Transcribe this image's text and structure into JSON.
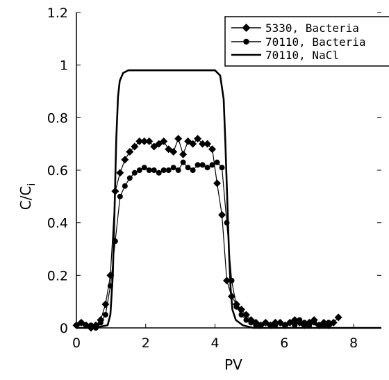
{
  "chart_data": {
    "type": "line",
    "title": "",
    "xlabel": "PV",
    "ylabel": "C/C",
    "ylabel_sub": "i",
    "xlim": [
      0,
      8.8
    ],
    "ylim": [
      0,
      1.2
    ],
    "x_ticks": [
      "0",
      "2",
      "4",
      "6",
      "8"
    ],
    "y_ticks": [
      "0",
      "0.2",
      "0.4",
      "0.6",
      "0.8",
      "1",
      "1.2"
    ],
    "grid": false,
    "legend": "top-right",
    "series": [
      {
        "name": "5330, Bacteria",
        "marker": "diamond",
        "x": [
          0.0,
          0.14,
          0.28,
          0.42,
          0.56,
          0.7,
          0.84,
          0.98,
          1.12,
          1.26,
          1.4,
          1.54,
          1.68,
          1.82,
          1.96,
          2.1,
          2.24,
          2.38,
          2.52,
          2.66,
          2.8,
          2.94,
          3.08,
          3.22,
          3.36,
          3.5,
          3.64,
          3.78,
          3.92,
          4.06,
          4.2,
          4.34,
          4.48,
          4.62,
          4.76,
          4.9,
          5.04,
          5.18,
          5.32,
          5.46,
          5.6,
          5.74,
          5.88,
          6.02,
          6.16,
          6.3,
          6.44,
          6.58,
          6.72,
          6.86,
          7.0,
          7.14,
          7.28,
          7.42,
          7.56
        ],
        "y": [
          0.01,
          0.02,
          0.01,
          0.0,
          0.01,
          0.03,
          0.09,
          0.2,
          0.52,
          0.59,
          0.64,
          0.67,
          0.69,
          0.71,
          0.71,
          0.71,
          0.69,
          0.7,
          0.71,
          0.68,
          0.67,
          0.72,
          0.66,
          0.71,
          0.7,
          0.72,
          0.7,
          0.7,
          0.68,
          0.55,
          0.43,
          0.18,
          0.12,
          0.09,
          0.07,
          0.05,
          0.03,
          0.02,
          0.01,
          0.02,
          0.01,
          0.02,
          0.02,
          0.01,
          0.02,
          0.03,
          0.02,
          0.01,
          0.02,
          0.03,
          0.01,
          0.02,
          0.01,
          0.02,
          0.04
        ]
      },
      {
        "name": "70110, Bacteria",
        "marker": "circle",
        "x": [
          0.0,
          0.14,
          0.28,
          0.42,
          0.56,
          0.7,
          0.84,
          0.98,
          1.12,
          1.26,
          1.4,
          1.54,
          1.68,
          1.82,
          1.96,
          2.1,
          2.24,
          2.38,
          2.52,
          2.66,
          2.8,
          2.94,
          3.08,
          3.22,
          3.36,
          3.5,
          3.64,
          3.78,
          3.92,
          4.06,
          4.2,
          4.34,
          4.48,
          4.62,
          4.76,
          4.9,
          5.04,
          5.18,
          5.32,
          5.46,
          5.6,
          5.74,
          5.88,
          6.02,
          6.16,
          6.3,
          6.44,
          6.58,
          6.72,
          6.86,
          7.0,
          7.14,
          7.28
        ],
        "y": [
          0.01,
          0.02,
          0.01,
          0.01,
          0.0,
          0.02,
          0.05,
          0.16,
          0.33,
          0.5,
          0.54,
          0.57,
          0.59,
          0.6,
          0.61,
          0.6,
          0.6,
          0.59,
          0.6,
          0.6,
          0.61,
          0.6,
          0.63,
          0.61,
          0.6,
          0.62,
          0.62,
          0.61,
          0.62,
          0.63,
          0.61,
          0.4,
          0.18,
          0.08,
          0.05,
          0.03,
          0.02,
          0.01,
          0.01,
          0.02,
          0.01,
          0.01,
          0.02,
          0.01,
          0.02,
          0.01,
          0.03,
          0.02,
          0.01,
          0.02,
          0.01,
          0.01,
          0.02
        ]
      },
      {
        "name": "70110, NaCl",
        "marker": "none",
        "x": [
          0.0,
          0.5,
          0.9,
          0.98,
          1.05,
          1.1,
          1.15,
          1.2,
          1.25,
          1.35,
          1.5,
          1.7,
          2.0,
          3.0,
          4.0,
          4.15,
          4.25,
          4.3,
          4.35,
          4.4,
          4.45,
          4.5,
          4.6,
          4.8,
          5.1,
          6.0,
          7.0,
          8.0,
          8.8
        ],
        "y": [
          0.0,
          0.0,
          0.01,
          0.05,
          0.2,
          0.45,
          0.72,
          0.88,
          0.94,
          0.97,
          0.98,
          0.98,
          0.98,
          0.98,
          0.98,
          0.96,
          0.87,
          0.7,
          0.5,
          0.3,
          0.15,
          0.07,
          0.03,
          0.01,
          0.0,
          0.0,
          0.0,
          0.0,
          0.0
        ]
      }
    ]
  }
}
